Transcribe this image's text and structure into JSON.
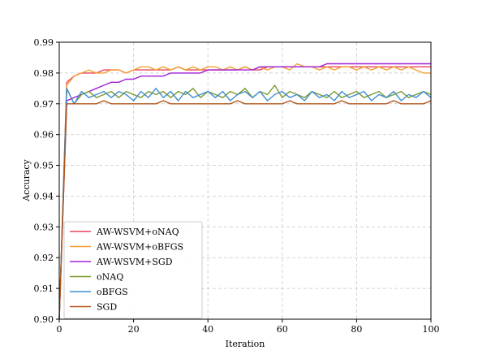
{
  "chart_data": {
    "type": "line",
    "title": "",
    "xlabel": "Iteration",
    "ylabel": "Accuracy",
    "xlim": [
      0,
      100
    ],
    "ylim": [
      0.9,
      0.99
    ],
    "xticks": [
      "0",
      "20",
      "40",
      "60",
      "80",
      "100"
    ],
    "yticks": [
      "0.90",
      "0.91",
      "0.92",
      "0.93",
      "0.94",
      "0.95",
      "0.96",
      "0.97",
      "0.98",
      "0.99"
    ],
    "grid": true,
    "legend_position": "lower-left",
    "x": [
      0,
      2,
      4,
      6,
      8,
      10,
      12,
      14,
      16,
      18,
      20,
      22,
      24,
      26,
      28,
      30,
      32,
      34,
      36,
      38,
      40,
      42,
      44,
      46,
      48,
      50,
      52,
      54,
      56,
      58,
      60,
      62,
      64,
      66,
      68,
      70,
      72,
      74,
      76,
      78,
      80,
      82,
      84,
      86,
      88,
      90,
      92,
      94,
      96,
      98,
      100
    ],
    "series": [
      {
        "name": "AW-WSVM+oNAQ",
        "color": "#e8445a",
        "values": [
          0.9,
          0.977,
          0.979,
          0.98,
          0.98,
          0.98,
          0.981,
          0.981,
          0.981,
          0.98,
          0.981,
          0.981,
          0.981,
          0.981,
          0.981,
          0.981,
          0.982,
          0.981,
          0.981,
          0.981,
          0.981,
          0.981,
          0.981,
          0.981,
          0.981,
          0.982,
          0.981,
          0.981,
          0.982,
          0.982,
          0.982,
          0.982,
          0.982,
          0.982,
          0.982,
          0.982,
          0.982,
          0.982,
          0.982,
          0.982,
          0.982,
          0.982,
          0.982,
          0.982,
          0.982,
          0.982,
          0.982,
          0.982,
          0.982,
          0.982,
          0.982
        ]
      },
      {
        "name": "AW-WSVM+oBFGS",
        "color": "#f5a033",
        "values": [
          0.9,
          0.976,
          0.979,
          0.98,
          0.981,
          0.98,
          0.98,
          0.981,
          0.981,
          0.98,
          0.981,
          0.982,
          0.982,
          0.981,
          0.982,
          0.981,
          0.982,
          0.981,
          0.982,
          0.981,
          0.982,
          0.982,
          0.981,
          0.982,
          0.981,
          0.982,
          0.981,
          0.982,
          0.981,
          0.982,
          0.982,
          0.981,
          0.983,
          0.982,
          0.982,
          0.981,
          0.982,
          0.981,
          0.982,
          0.982,
          0.981,
          0.982,
          0.981,
          0.982,
          0.981,
          0.982,
          0.981,
          0.982,
          0.981,
          0.98,
          0.98
        ]
      },
      {
        "name": "AW-WSVM+SGD",
        "color": "#a020d8",
        "values": [
          0.9,
          0.971,
          0.972,
          0.973,
          0.974,
          0.975,
          0.976,
          0.977,
          0.977,
          0.978,
          0.978,
          0.979,
          0.979,
          0.979,
          0.979,
          0.98,
          0.98,
          0.98,
          0.98,
          0.98,
          0.981,
          0.981,
          0.981,
          0.981,
          0.981,
          0.981,
          0.981,
          0.982,
          0.982,
          0.982,
          0.982,
          0.982,
          0.982,
          0.982,
          0.982,
          0.982,
          0.983,
          0.983,
          0.983,
          0.983,
          0.983,
          0.983,
          0.983,
          0.983,
          0.983,
          0.983,
          0.983,
          0.983,
          0.983,
          0.983,
          0.983
        ]
      },
      {
        "name": "oNAQ",
        "color": "#7a9a2e",
        "values": [
          0.9,
          0.975,
          0.97,
          0.973,
          0.974,
          0.972,
          0.973,
          0.974,
          0.972,
          0.974,
          0.973,
          0.972,
          0.974,
          0.973,
          0.974,
          0.972,
          0.974,
          0.973,
          0.975,
          0.972,
          0.974,
          0.973,
          0.972,
          0.974,
          0.973,
          0.975,
          0.972,
          0.974,
          0.973,
          0.976,
          0.972,
          0.974,
          0.973,
          0.972,
          0.974,
          0.973,
          0.972,
          0.974,
          0.972,
          0.973,
          0.974,
          0.972,
          0.973,
          0.974,
          0.972,
          0.973,
          0.974,
          0.972,
          0.973,
          0.974,
          0.973
        ]
      },
      {
        "name": "oBFGS",
        "color": "#3f8fd0",
        "values": [
          0.9,
          0.975,
          0.97,
          0.974,
          0.972,
          0.973,
          0.974,
          0.972,
          0.974,
          0.973,
          0.971,
          0.974,
          0.972,
          0.975,
          0.972,
          0.974,
          0.971,
          0.974,
          0.972,
          0.973,
          0.974,
          0.972,
          0.974,
          0.971,
          0.973,
          0.974,
          0.972,
          0.974,
          0.971,
          0.973,
          0.974,
          0.972,
          0.973,
          0.971,
          0.974,
          0.972,
          0.973,
          0.971,
          0.974,
          0.972,
          0.973,
          0.974,
          0.971,
          0.973,
          0.972,
          0.974,
          0.971,
          0.973,
          0.972,
          0.974,
          0.972
        ]
      },
      {
        "name": "SGD",
        "color": "#b0551a",
        "values": [
          0.9,
          0.97,
          0.97,
          0.97,
          0.97,
          0.97,
          0.971,
          0.97,
          0.97,
          0.97,
          0.97,
          0.97,
          0.97,
          0.97,
          0.971,
          0.97,
          0.97,
          0.97,
          0.97,
          0.97,
          0.97,
          0.97,
          0.97,
          0.97,
          0.971,
          0.97,
          0.97,
          0.97,
          0.97,
          0.97,
          0.97,
          0.971,
          0.97,
          0.97,
          0.97,
          0.97,
          0.97,
          0.97,
          0.971,
          0.97,
          0.97,
          0.97,
          0.97,
          0.97,
          0.97,
          0.971,
          0.97,
          0.97,
          0.97,
          0.97,
          0.971
        ]
      }
    ]
  }
}
